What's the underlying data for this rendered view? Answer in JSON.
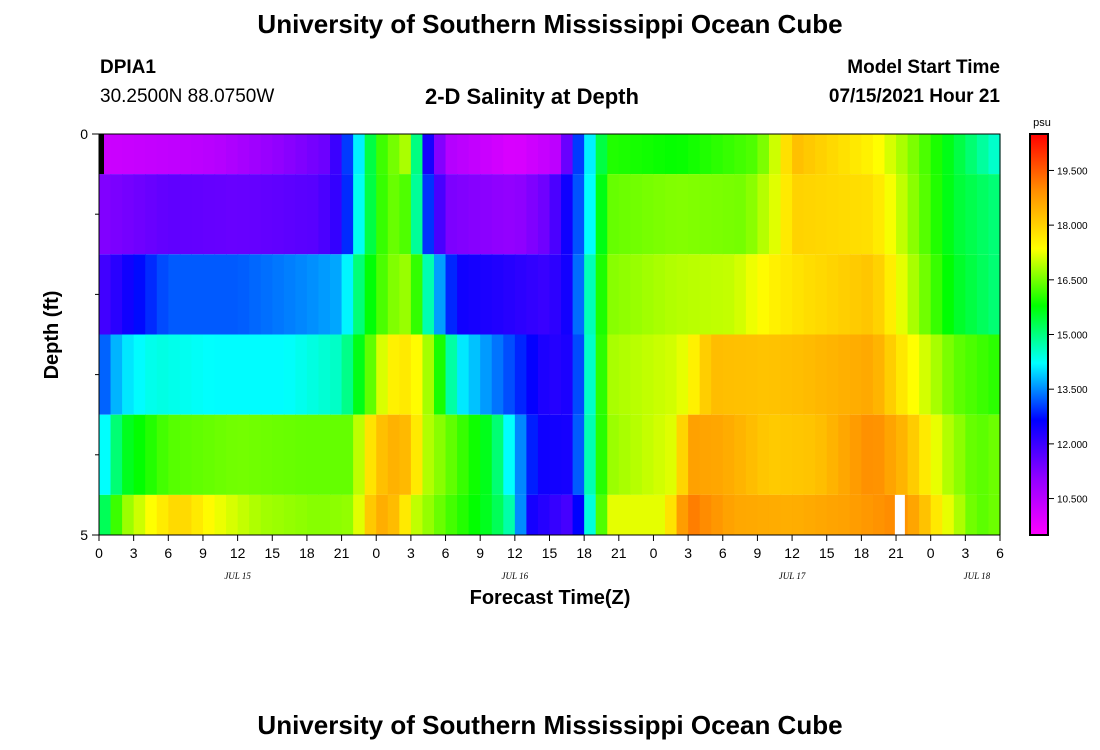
{
  "page": {
    "top_title": "University of Southern Mississippi Ocean Cube",
    "bottom_title": "University of Southern Mississippi Ocean Cube",
    "station_id": "DPIA1",
    "station_coords": "30.2500N  88.0750W",
    "plot_title": "2-D Salinity at Depth",
    "model_label": "Model Start Time",
    "model_time": "07/15/2021 Hour 21"
  },
  "colors": {
    "scale": [
      "#ff00ff",
      "#9000ff",
      "#0000ff",
      "#00ffff",
      "#00ff00",
      "#ffff00",
      "#ff9000",
      "#ff0000"
    ],
    "marker": "#000000",
    "gap": "#ffffff"
  },
  "chart_data": {
    "type": "heatmap",
    "title": "2-D Salinity at Depth",
    "xlabel": "Forecast Time(Z)",
    "ylabel": "Depth (ft)",
    "unit": "psu",
    "x_start_hour": 0,
    "x_end_hour": 78,
    "x_ticks": [
      {
        "hour": 0,
        "label": "0"
      },
      {
        "hour": 3,
        "label": "3"
      },
      {
        "hour": 6,
        "label": "6"
      },
      {
        "hour": 9,
        "label": "9"
      },
      {
        "hour": 12,
        "label": "12"
      },
      {
        "hour": 15,
        "label": "15"
      },
      {
        "hour": 18,
        "label": "18"
      },
      {
        "hour": 21,
        "label": "21"
      },
      {
        "hour": 24,
        "label": "0"
      },
      {
        "hour": 27,
        "label": "3"
      },
      {
        "hour": 30,
        "label": "6"
      },
      {
        "hour": 33,
        "label": "9"
      },
      {
        "hour": 36,
        "label": "12"
      },
      {
        "hour": 39,
        "label": "15"
      },
      {
        "hour": 42,
        "label": "18"
      },
      {
        "hour": 45,
        "label": "21"
      },
      {
        "hour": 48,
        "label": "0"
      },
      {
        "hour": 51,
        "label": "3"
      },
      {
        "hour": 54,
        "label": "6"
      },
      {
        "hour": 57,
        "label": "9"
      },
      {
        "hour": 60,
        "label": "12"
      },
      {
        "hour": 63,
        "label": "15"
      },
      {
        "hour": 66,
        "label": "18"
      },
      {
        "hour": 69,
        "label": "21"
      },
      {
        "hour": 72,
        "label": "0"
      },
      {
        "hour": 75,
        "label": "3"
      },
      {
        "hour": 78,
        "label": "6"
      }
    ],
    "day_labels": [
      {
        "hour": 12,
        "label": "JUL 15"
      },
      {
        "hour": 36,
        "label": "JUL 16"
      },
      {
        "hour": 60,
        "label": "JUL 17"
      },
      {
        "hour": 76,
        "label": "JUL 18"
      }
    ],
    "y_range": [
      0,
      5
    ],
    "y_tick_labels": [
      "0",
      "5"
    ],
    "y_minor_ticks": [
      1,
      2,
      3,
      4
    ],
    "depth_levels": 5,
    "colorbar": {
      "unit_label": "psu",
      "min": 9.5,
      "max": 20.5,
      "tick_values": [
        10.5,
        12.0,
        13.5,
        15.0,
        16.5,
        18.0,
        19.5
      ],
      "tick_labels": [
        "10.500",
        "12.000",
        "13.500",
        "15.000",
        "16.500",
        "18.000",
        "19.500"
      ]
    },
    "series": [
      {
        "name": "0-0.5 ft",
        "top": 0,
        "bottom": 0.5,
        "keyframes": [
          [
            0,
            10.2
          ],
          [
            10,
            10.5
          ],
          [
            20,
            11.5
          ],
          [
            22,
            13.5
          ],
          [
            24,
            16
          ],
          [
            27,
            17
          ],
          [
            28,
            13
          ],
          [
            30,
            10.6
          ],
          [
            36,
            10.0
          ],
          [
            40,
            10.5
          ],
          [
            41,
            12.5
          ],
          [
            42,
            13.5
          ],
          [
            44,
            16.0
          ],
          [
            50,
            15.8
          ],
          [
            57,
            16.3
          ],
          [
            59,
            17.3
          ],
          [
            60,
            18.3
          ],
          [
            67,
            17.5
          ],
          [
            70,
            16.7
          ],
          [
            74,
            15.5
          ],
          [
            78,
            14.4
          ]
        ]
      },
      {
        "name": "0.5-1.5 ft",
        "top": 0.5,
        "bottom": 1.5,
        "keyframes": [
          [
            0,
            11.2
          ],
          [
            6,
            11.6
          ],
          [
            12,
            11.5
          ],
          [
            19,
            11.7
          ],
          [
            21,
            12.2
          ],
          [
            23,
            15.0
          ],
          [
            25,
            16.5
          ],
          [
            27,
            16.2
          ],
          [
            28,
            13.5
          ],
          [
            30,
            11.3
          ],
          [
            36,
            11.0
          ],
          [
            39,
            11.5
          ],
          [
            41,
            12.8
          ],
          [
            42,
            13.5
          ],
          [
            44,
            16.4
          ],
          [
            50,
            16.6
          ],
          [
            56,
            16.5
          ],
          [
            59,
            17.3
          ],
          [
            60,
            18.0
          ],
          [
            67,
            17.8
          ],
          [
            70,
            16.8
          ],
          [
            74,
            15.5
          ],
          [
            78,
            15.0
          ]
        ]
      },
      {
        "name": "1.5-2.5 ft",
        "top": 1.5,
        "bottom": 2.5,
        "keyframes": [
          [
            0,
            11.8
          ],
          [
            3,
            12.6
          ],
          [
            6,
            13.2
          ],
          [
            12,
            13.2
          ],
          [
            18,
            13.5
          ],
          [
            21,
            13.7
          ],
          [
            23,
            15.5
          ],
          [
            25,
            16.5
          ],
          [
            27,
            16.8
          ],
          [
            29,
            14.0
          ],
          [
            31,
            12.5
          ],
          [
            36,
            12.2
          ],
          [
            39,
            12.0
          ],
          [
            41,
            12.6
          ],
          [
            42,
            14.0
          ],
          [
            44,
            16.6
          ],
          [
            50,
            16.9
          ],
          [
            55,
            17.0
          ],
          [
            58,
            17.5
          ],
          [
            61,
            17.8
          ],
          [
            67,
            18.2
          ],
          [
            70,
            17.0
          ],
          [
            74,
            15.6
          ],
          [
            78,
            15.0
          ]
        ]
      },
      {
        "name": "2.5-3.5 ft",
        "top": 2.5,
        "bottom": 3.5,
        "keyframes": [
          [
            0,
            13.0
          ],
          [
            2,
            14.0
          ],
          [
            5,
            14.4
          ],
          [
            10,
            14.2
          ],
          [
            16,
            14.2
          ],
          [
            21,
            14.6
          ],
          [
            23,
            16.0
          ],
          [
            25,
            17.5
          ],
          [
            27,
            17.7
          ],
          [
            29,
            16.5
          ],
          [
            31,
            14.2
          ],
          [
            36,
            13.0
          ],
          [
            39,
            12.2
          ],
          [
            41,
            12.4
          ],
          [
            42,
            13.8
          ],
          [
            44,
            16.8
          ],
          [
            50,
            17.1
          ],
          [
            51,
            17.3
          ],
          [
            53,
            18.3
          ],
          [
            58,
            18.2
          ],
          [
            61,
            18.3
          ],
          [
            67,
            18.6
          ],
          [
            70,
            17.5
          ],
          [
            74,
            16.4
          ],
          [
            78,
            16.0
          ]
        ]
      },
      {
        "name": "3.5-4.5 ft",
        "top": 3.5,
        "bottom": 4.5,
        "keyframes": [
          [
            0,
            13.8
          ],
          [
            2,
            15.5
          ],
          [
            6,
            16.3
          ],
          [
            12,
            16.5
          ],
          [
            18,
            16.4
          ],
          [
            22,
            16.4
          ],
          [
            23,
            17.5
          ],
          [
            25,
            18.5
          ],
          [
            27,
            18.3
          ],
          [
            28,
            17.0
          ],
          [
            30,
            16.5
          ],
          [
            34,
            15.5
          ],
          [
            36,
            13.8
          ],
          [
            38,
            12.5
          ],
          [
            41,
            12.4
          ],
          [
            42,
            14.0
          ],
          [
            44,
            16.7
          ],
          [
            50,
            17.2
          ],
          [
            51,
            18.7
          ],
          [
            54,
            18.6
          ],
          [
            58,
            18.1
          ],
          [
            62,
            18.2
          ],
          [
            67,
            19.0
          ],
          [
            70,
            18.3
          ],
          [
            73,
            17.0
          ],
          [
            76,
            16.3
          ],
          [
            78,
            16.5
          ]
        ]
      },
      {
        "name": "4.5-5 ft",
        "top": 4.5,
        "bottom": 5,
        "keyframes": [
          [
            0,
            14.8
          ],
          [
            2,
            16.6
          ],
          [
            5,
            17.5
          ],
          [
            7,
            18.0
          ],
          [
            10,
            17.3
          ],
          [
            14,
            16.8
          ],
          [
            19,
            16.6
          ],
          [
            22,
            16.7
          ],
          [
            24,
            18.6
          ],
          [
            26,
            18.2
          ],
          [
            27,
            17.1
          ],
          [
            30,
            16.3
          ],
          [
            34,
            15.5
          ],
          [
            36,
            14.5
          ],
          [
            37,
            12.5
          ],
          [
            41,
            11.8
          ],
          [
            42,
            13.5
          ],
          [
            44,
            17.2
          ],
          [
            49,
            17.2
          ],
          [
            50,
            18.3
          ],
          [
            51,
            19.2
          ],
          [
            55,
            18.6
          ],
          [
            60,
            18.5
          ],
          [
            65,
            18.7
          ],
          [
            69,
            19.0
          ],
          [
            71,
            18.5
          ],
          [
            73,
            17.4
          ],
          [
            76,
            16.3
          ],
          [
            78,
            16.5
          ]
        ]
      }
    ],
    "annotations": [
      {
        "type": "gap",
        "hour": 68.9,
        "depth_top": 4.5,
        "depth_bottom": 5
      },
      {
        "type": "marker",
        "hour": 0.0,
        "depth_top": 0,
        "depth_bottom": 0.5
      }
    ]
  }
}
